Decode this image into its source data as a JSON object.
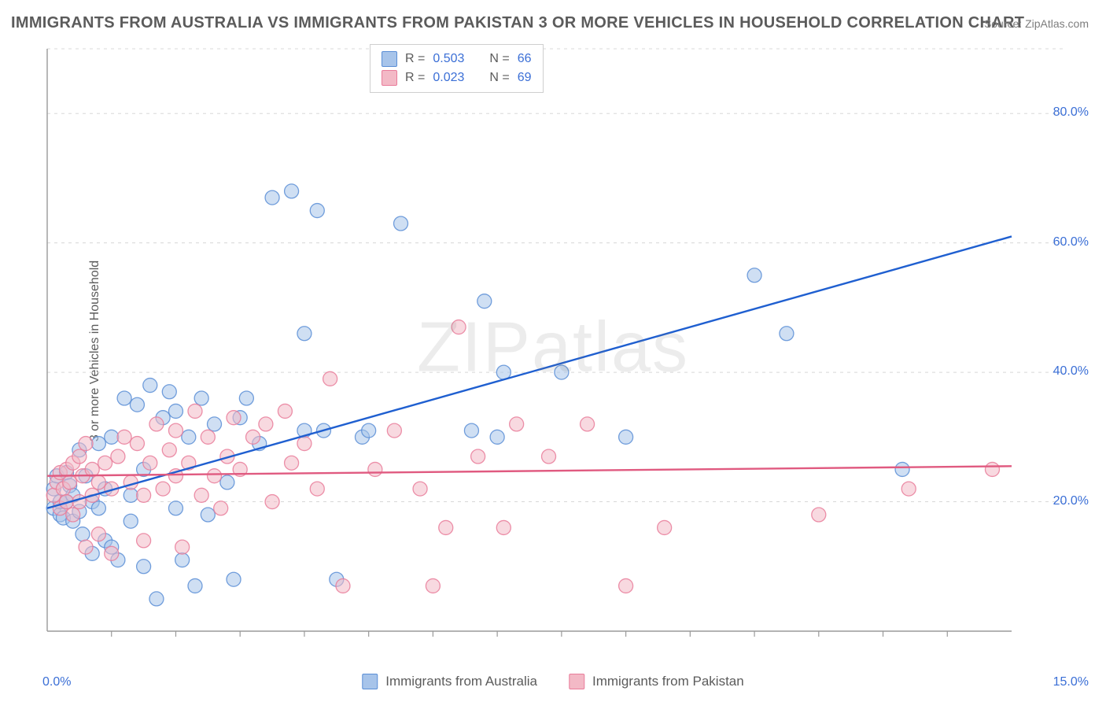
{
  "title": "IMMIGRANTS FROM AUSTRALIA VS IMMIGRANTS FROM PAKISTAN 3 OR MORE VEHICLES IN HOUSEHOLD CORRELATION CHART",
  "source": "Source: ZipAtlas.com",
  "watermark": "ZIPatlas",
  "y_axis_label": "3 or more Vehicles in Household",
  "chart": {
    "type": "scatter",
    "xlim": [
      0,
      15
    ],
    "ylim": [
      0,
      90
    ],
    "x_min_label": "0.0%",
    "x_max_label": "15.0%",
    "y_ticks": [
      20,
      40,
      60,
      80
    ],
    "y_tick_labels": [
      "20.0%",
      "40.0%",
      "60.0%",
      "80.0%"
    ],
    "x_tick_positions": [
      1,
      2,
      3,
      4,
      5,
      6,
      7,
      8,
      9,
      10,
      11,
      12,
      13,
      14
    ],
    "grid_color": "#d8d8d8",
    "axis_color": "#9a9a9a",
    "background_color": "#ffffff",
    "marker_radius": 9,
    "marker_opacity": 0.55,
    "marker_stroke_opacity": 0.85,
    "marker_stroke_width": 1.3,
    "line_width": 2.4,
    "series": [
      {
        "name": "Immigrants from Australia",
        "key": "australia",
        "fill": "#a7c4ea",
        "stroke": "#5a8ed6",
        "line_color": "#1f5fd0",
        "R": "0.503",
        "N": "66",
        "trend": {
          "x1": 0,
          "y1": 19,
          "x2": 15,
          "y2": 61
        },
        "points": [
          [
            0.1,
            19
          ],
          [
            0.1,
            22
          ],
          [
            0.15,
            24
          ],
          [
            0.2,
            18
          ],
          [
            0.2,
            20
          ],
          [
            0.25,
            17.5
          ],
          [
            0.3,
            24.5
          ],
          [
            0.3,
            20
          ],
          [
            0.35,
            22.5
          ],
          [
            0.4,
            21
          ],
          [
            0.4,
            17
          ],
          [
            0.5,
            18.5
          ],
          [
            0.5,
            28
          ],
          [
            0.55,
            15
          ],
          [
            0.6,
            24
          ],
          [
            0.7,
            12
          ],
          [
            0.7,
            20
          ],
          [
            0.8,
            19
          ],
          [
            0.8,
            29
          ],
          [
            0.9,
            14
          ],
          [
            0.9,
            22
          ],
          [
            1.0,
            13
          ],
          [
            1.0,
            30
          ],
          [
            1.1,
            11
          ],
          [
            1.2,
            36
          ],
          [
            1.3,
            17
          ],
          [
            1.3,
            21
          ],
          [
            1.4,
            35
          ],
          [
            1.5,
            10
          ],
          [
            1.5,
            25
          ],
          [
            1.6,
            38
          ],
          [
            1.7,
            5
          ],
          [
            1.8,
            33
          ],
          [
            1.9,
            37
          ],
          [
            2.0,
            19
          ],
          [
            2.0,
            34
          ],
          [
            2.1,
            11
          ],
          [
            2.2,
            30
          ],
          [
            2.3,
            7
          ],
          [
            2.4,
            36
          ],
          [
            2.5,
            18
          ],
          [
            2.6,
            32
          ],
          [
            2.8,
            23
          ],
          [
            2.9,
            8
          ],
          [
            3.0,
            33
          ],
          [
            3.1,
            36
          ],
          [
            3.3,
            29
          ],
          [
            3.5,
            67
          ],
          [
            3.8,
            68
          ],
          [
            4.0,
            31
          ],
          [
            4.0,
            46
          ],
          [
            4.2,
            65
          ],
          [
            4.3,
            31
          ],
          [
            4.5,
            8
          ],
          [
            4.9,
            30
          ],
          [
            5.0,
            31
          ],
          [
            5.5,
            63
          ],
          [
            6.6,
            31
          ],
          [
            6.8,
            51
          ],
          [
            7.0,
            30
          ],
          [
            7.1,
            40
          ],
          [
            8.0,
            40
          ],
          [
            9.0,
            30
          ],
          [
            11.0,
            55
          ],
          [
            11.5,
            46
          ],
          [
            13.3,
            25
          ]
        ]
      },
      {
        "name": "Immigrants from Pakistan",
        "key": "pakistan",
        "fill": "#f3b9c6",
        "stroke": "#e97c9a",
        "line_color": "#e05a80",
        "R": "0.023",
        "N": "69",
        "trend": {
          "x1": 0,
          "y1": 24,
          "x2": 15,
          "y2": 25.5
        },
        "points": [
          [
            0.1,
            21
          ],
          [
            0.15,
            23
          ],
          [
            0.2,
            19
          ],
          [
            0.2,
            24.5
          ],
          [
            0.25,
            22
          ],
          [
            0.3,
            20
          ],
          [
            0.3,
            25
          ],
          [
            0.35,
            23
          ],
          [
            0.4,
            26
          ],
          [
            0.4,
            18
          ],
          [
            0.5,
            20
          ],
          [
            0.5,
            27
          ],
          [
            0.55,
            24
          ],
          [
            0.6,
            29
          ],
          [
            0.6,
            13
          ],
          [
            0.7,
            21
          ],
          [
            0.7,
            25
          ],
          [
            0.8,
            15
          ],
          [
            0.8,
            23
          ],
          [
            0.9,
            26
          ],
          [
            1.0,
            22
          ],
          [
            1.0,
            12
          ],
          [
            1.1,
            27
          ],
          [
            1.2,
            30
          ],
          [
            1.3,
            23
          ],
          [
            1.4,
            29
          ],
          [
            1.5,
            21
          ],
          [
            1.5,
            14
          ],
          [
            1.6,
            26
          ],
          [
            1.7,
            32
          ],
          [
            1.8,
            22
          ],
          [
            1.9,
            28
          ],
          [
            2.0,
            24
          ],
          [
            2.0,
            31
          ],
          [
            2.1,
            13
          ],
          [
            2.2,
            26
          ],
          [
            2.3,
            34
          ],
          [
            2.4,
            21
          ],
          [
            2.5,
            30
          ],
          [
            2.6,
            24
          ],
          [
            2.7,
            19
          ],
          [
            2.8,
            27
          ],
          [
            2.9,
            33
          ],
          [
            3.0,
            25
          ],
          [
            3.2,
            30
          ],
          [
            3.4,
            32
          ],
          [
            3.5,
            20
          ],
          [
            3.7,
            34
          ],
          [
            3.8,
            26
          ],
          [
            4.0,
            29
          ],
          [
            4.2,
            22
          ],
          [
            4.4,
            39
          ],
          [
            4.6,
            7
          ],
          [
            5.1,
            25
          ],
          [
            5.4,
            31
          ],
          [
            5.8,
            22
          ],
          [
            6.0,
            7
          ],
          [
            6.2,
            16
          ],
          [
            6.4,
            47
          ],
          [
            6.7,
            27
          ],
          [
            7.1,
            16
          ],
          [
            7.3,
            32
          ],
          [
            7.8,
            27
          ],
          [
            8.4,
            32
          ],
          [
            9.0,
            7
          ],
          [
            9.6,
            16
          ],
          [
            12.0,
            18
          ],
          [
            13.4,
            22
          ],
          [
            14.7,
            25
          ]
        ]
      }
    ]
  },
  "legend_top": {
    "rows": [
      {
        "swatch": "australia",
        "r_label": "R =",
        "r_value": "0.503",
        "n_label": "N =",
        "n_value": "66"
      },
      {
        "swatch": "pakistan",
        "r_label": "R =",
        "r_value": "0.023",
        "n_label": "N =",
        "n_value": "69"
      }
    ]
  },
  "legend_bottom": {
    "items": [
      {
        "swatch": "australia",
        "label": "Immigrants from Australia"
      },
      {
        "swatch": "pakistan",
        "label": "Immigrants from Pakistan"
      }
    ]
  }
}
